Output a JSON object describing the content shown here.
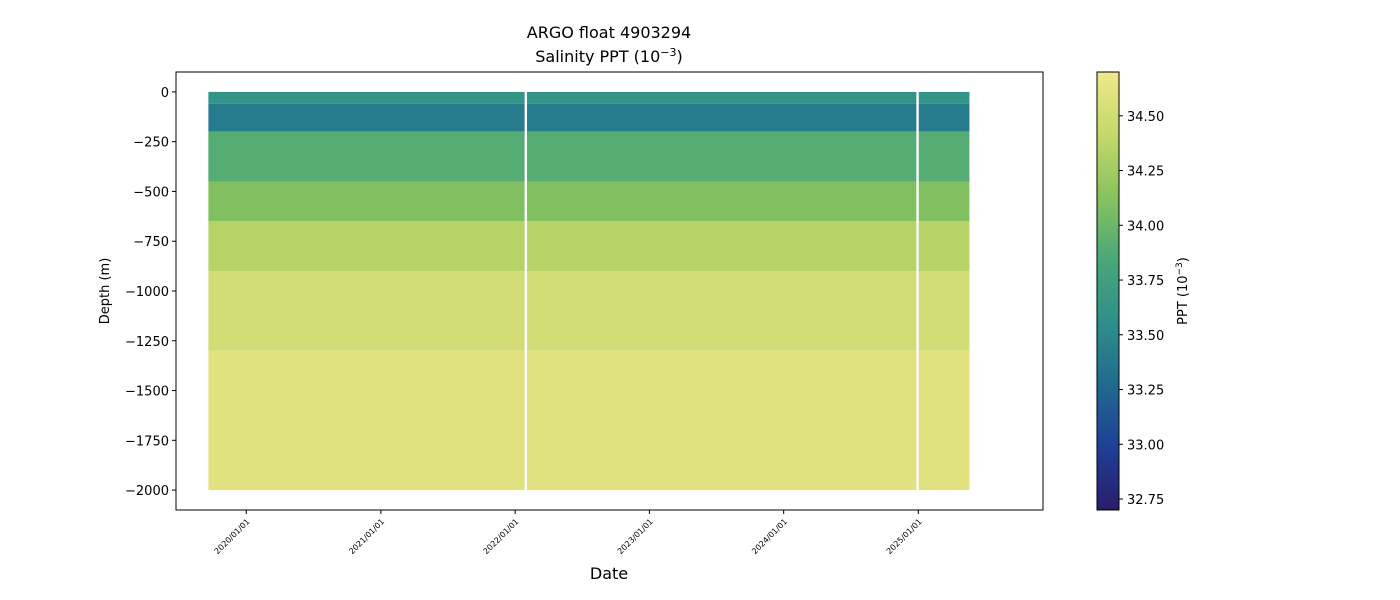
{
  "chart_data": {
    "type": "heatmap",
    "title": "ARGO float 4903294",
    "subtitle_base": "Salinity PPT (10",
    "subtitle_exp": "−3",
    "subtitle_end": ")",
    "xlabel": "Date",
    "ylabel": "Depth (m)",
    "colorbar_label_base": "PPT (10",
    "colorbar_label_exp": "−3",
    "colorbar_label_end": ")",
    "xlim": [
      "2019-06-24",
      "2025-12-06"
    ],
    "ylim": [
      -2100,
      100
    ],
    "yticks": [
      0,
      -250,
      -500,
      -750,
      -1000,
      -1250,
      -1500,
      -1750,
      -2000
    ],
    "ytick_labels": [
      "0",
      "−250",
      "−500",
      "−750",
      "−1000",
      "−1250",
      "−1500",
      "−1750",
      "−2000"
    ],
    "xticks": [
      "2020-01-01",
      "2021-01-01",
      "2022-01-01",
      "2023-01-01",
      "2024-01-01",
      "2025-01-01"
    ],
    "xtick_labels": [
      "2020/01/01",
      "2021/01/01",
      "2022/01/01",
      "2023/01/01",
      "2024/01/01",
      "2025/01/01"
    ],
    "data_range": [
      "2019-09-20",
      "2025-05-20"
    ],
    "gaps": [
      "2022-01-30",
      "2024-12-30"
    ],
    "bottom_depth": -2000,
    "colorbar_range": [
      32.7,
      34.7
    ],
    "colorbar_ticks": [
      32.75,
      33.0,
      33.25,
      33.5,
      33.75,
      34.0,
      34.25,
      34.5
    ],
    "colorbar_tick_labels": [
      "32.75",
      "33.00",
      "33.25",
      "33.50",
      "33.75",
      "34.00",
      "34.25",
      "34.50"
    ],
    "profile_bands": [
      {
        "depth": [
          0,
          -60
        ],
        "salinity": 33.6
      },
      {
        "depth": [
          -60,
          -200
        ],
        "salinity": 33.4
      },
      {
        "depth": [
          -200,
          -450
        ],
        "salinity": 33.9
      },
      {
        "depth": [
          -450,
          -650
        ],
        "salinity": 34.1
      },
      {
        "depth": [
          -650,
          -900
        ],
        "salinity": 34.35
      },
      {
        "depth": [
          -900,
          -1300
        ],
        "salinity": 34.5
      },
      {
        "depth": [
          -1300,
          -2000
        ],
        "salinity": 34.6
      }
    ],
    "colormap": [
      "#2a1d6b",
      "#1f3f97",
      "#206a8f",
      "#2e8f8a",
      "#4aa778",
      "#86c35e",
      "#c5d86b",
      "#eee88a"
    ],
    "grid": false,
    "legend": "colorbar-right"
  }
}
